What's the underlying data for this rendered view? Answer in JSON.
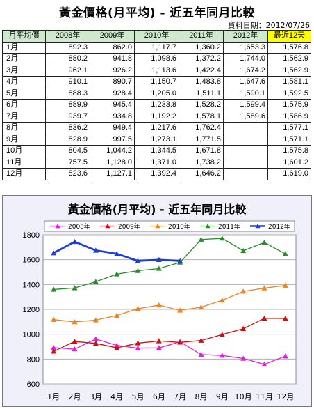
{
  "header": {
    "title": "黃金價格(月平均) - 近五年同月比較",
    "date": "資料日期：2012/07/26"
  },
  "table": {
    "headers": [
      "月平均價",
      "2008年",
      "2009年",
      "2010年",
      "2011年",
      "2012年",
      "最近12天"
    ],
    "rows": [
      [
        "1月",
        "892.3",
        "862.0",
        "1,117.7",
        "1,360.2",
        "1,653.3",
        "1,576.8"
      ],
      [
        "2月",
        "880.2",
        "941.8",
        "1,098.6",
        "1,372.2",
        "1,744.0",
        "1,562.9"
      ],
      [
        "3月",
        "962.1",
        "926.2",
        "1,113.6",
        "1,422.4",
        "1,674.2",
        "1,562.9"
      ],
      [
        "4月",
        "910.1",
        "890.7",
        "1,150.7",
        "1,483.8",
        "1,647.6",
        "1,581.1"
      ],
      [
        "5月",
        "888.3",
        "928.4",
        "1,205.0",
        "1,511.1",
        "1,590.1",
        "1,592.5"
      ],
      [
        "6月",
        "889.9",
        "945.4",
        "1,233.8",
        "1,528.2",
        "1,599.4",
        "1,575.9"
      ],
      [
        "7月",
        "939.7",
        "934.8",
        "1,192.2",
        "1,578.1",
        "1,589.6",
        "1,586.9"
      ],
      [
        "8月",
        "836.2",
        "949.4",
        "1,217.6",
        "1,762.4",
        "",
        "1,577.1"
      ],
      [
        "9月",
        "828.9",
        "997.5",
        "1,273.1",
        "1,771.5",
        "",
        "1,571.1"
      ],
      [
        "10月",
        "804.5",
        "1,044.2",
        "1,344.5",
        "1,671.8",
        "",
        "1,575.8"
      ],
      [
        "11月",
        "757.5",
        "1,128.0",
        "1,371.0",
        "1,738.2",
        "",
        "1,601.2"
      ],
      [
        "12月",
        "823.6",
        "1,127.1",
        "1,392.4",
        "1,646.2",
        "",
        "1,619.0"
      ]
    ]
  },
  "chart_data": {
    "type": "line",
    "title": "黃金價格(月平均) - 近五年同月比較",
    "categories": [
      "1月",
      "2月",
      "3月",
      "4月",
      "5月",
      "6月",
      "7月",
      "8月",
      "9月",
      "10月",
      "11月",
      "12月"
    ],
    "ylim": [
      600,
      1800
    ],
    "yticks": [
      "600",
      "800",
      "1000",
      "1200",
      "1400",
      "1600",
      "1800"
    ],
    "legend_position": "top",
    "grid": true,
    "series": [
      {
        "name": "2008年",
        "color": "#e020e0",
        "marker": "triangle",
        "values": [
          892.3,
          880.2,
          962.1,
          910.1,
          888.3,
          889.9,
          939.7,
          836.2,
          828.9,
          804.5,
          757.5,
          823.6
        ]
      },
      {
        "name": "2009年",
        "color": "#cc1111",
        "marker": "triangle",
        "values": [
          862.0,
          941.8,
          926.2,
          890.7,
          928.4,
          945.4,
          934.8,
          949.4,
          997.5,
          1044.2,
          1128.0,
          1127.1
        ]
      },
      {
        "name": "2010年",
        "color": "#f08020",
        "marker": "triangle",
        "values": [
          1117.7,
          1098.6,
          1113.6,
          1150.7,
          1205.0,
          1233.8,
          1192.2,
          1217.6,
          1273.1,
          1344.5,
          1371.0,
          1392.4
        ]
      },
      {
        "name": "2011年",
        "color": "#2a8a2a",
        "marker": "triangle",
        "values": [
          1360.2,
          1372.2,
          1422.4,
          1483.8,
          1511.1,
          1528.2,
          1578.1,
          1762.4,
          1771.5,
          1671.8,
          1738.2,
          1646.2
        ]
      },
      {
        "name": "2012年",
        "color": "#1f3fd0",
        "marker": "triangle",
        "bold": true,
        "values": [
          1653.3,
          1744.0,
          1674.2,
          1647.6,
          1590.1,
          1599.4,
          1589.6,
          null,
          null,
          null,
          null,
          null
        ]
      }
    ]
  }
}
